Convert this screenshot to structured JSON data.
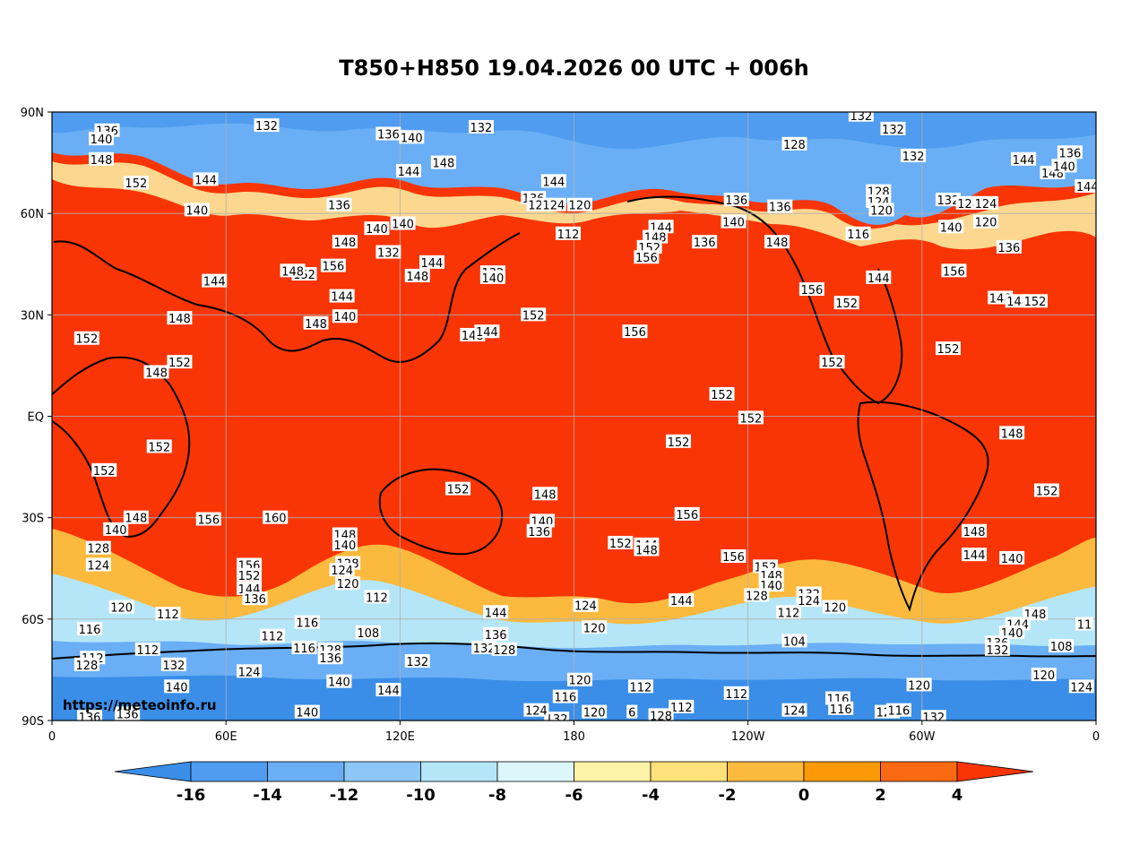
{
  "title": "T850+H850 19.04.2026 00 UTC + 006h",
  "watermark": "https://meteoinfo.ru",
  "map": {
    "projection": "equirectangular",
    "lon_range": [
      0,
      360
    ],
    "lat_range": [
      -90,
      90
    ],
    "lat_ticks": [
      {
        "lat": 90,
        "label": "90N"
      },
      {
        "lat": 60,
        "label": "60N"
      },
      {
        "lat": 30,
        "label": "30N"
      },
      {
        "lat": 0,
        "label": "EQ"
      },
      {
        "lat": -30,
        "label": "30S"
      },
      {
        "lat": -60,
        "label": "60S"
      },
      {
        "lat": -90,
        "label": "90S"
      }
    ],
    "lon_ticks": [
      {
        "lon": 0,
        "label": "0"
      },
      {
        "lon": 60,
        "label": "60E"
      },
      {
        "lon": 120,
        "label": "120E"
      },
      {
        "lon": 180,
        "label": "180"
      },
      {
        "lon": 240,
        "label": "120W"
      },
      {
        "lon": 300,
        "label": "60W"
      },
      {
        "lon": 360,
        "label": "0"
      }
    ],
    "grid": true
  },
  "colorbar": {
    "levels": [
      -16,
      -14,
      -12,
      -10,
      -8,
      -6,
      -4,
      -2,
      0,
      2,
      4
    ],
    "labels": [
      "-16",
      "-14",
      "-12",
      "-10",
      "-8",
      "-6",
      "-4",
      "-2",
      "0",
      "2",
      "4"
    ],
    "colors": [
      "#3a8ee8",
      "#4f9cf0",
      "#6aaff5",
      "#8cc7f8",
      "#b4e6f8",
      "#dcf6fc",
      "#fdf3a8",
      "#fde17a",
      "#fbba3e",
      "#fb9a06",
      "#fa6a12",
      "#f93506"
    ],
    "extend": "both"
  },
  "field_regions": [
    {
      "band": [
        [
          0,
          90
        ],
        [
          360,
          90
        ],
        [
          360,
          82
        ],
        [
          0,
          82
        ]
      ],
      "level": -14
    },
    {
      "band": [
        [
          0,
          -90
        ],
        [
          360,
          -90
        ],
        [
          360,
          -72
        ],
        [
          0,
          -72
        ]
      ],
      "level": -14
    }
  ],
  "contour_labels": [
    {
      "lon": 19,
      "lat": 84.5,
      "text": "136"
    },
    {
      "lon": 17,
      "lat": 82,
      "text": "140"
    },
    {
      "lon": 17,
      "lat": 76,
      "text": "148"
    },
    {
      "lon": 74,
      "lat": 86,
      "text": "132"
    },
    {
      "lon": 29,
      "lat": 69,
      "text": "152"
    },
    {
      "lon": 53,
      "lat": 70,
      "text": "144"
    },
    {
      "lon": 50,
      "lat": 61,
      "text": "140"
    },
    {
      "lon": 116,
      "lat": 83.5,
      "text": "136"
    },
    {
      "lon": 124,
      "lat": 82.5,
      "text": "140"
    },
    {
      "lon": 148,
      "lat": 85.5,
      "text": "132"
    },
    {
      "lon": 123,
      "lat": 72.5,
      "text": "144"
    },
    {
      "lon": 135,
      "lat": 75,
      "text": "148"
    },
    {
      "lon": 99,
      "lat": 62.5,
      "text": "136"
    },
    {
      "lon": 101,
      "lat": 51.5,
      "text": "148"
    },
    {
      "lon": 112,
      "lat": 55.5,
      "text": "140"
    },
    {
      "lon": 121,
      "lat": 57,
      "text": "140"
    },
    {
      "lon": 116,
      "lat": 48.5,
      "text": "132"
    },
    {
      "lon": 97,
      "lat": 44.5,
      "text": "156"
    },
    {
      "lon": 87,
      "lat": 42,
      "text": "152"
    },
    {
      "lon": 83,
      "lat": 43,
      "text": "148"
    },
    {
      "lon": 56,
      "lat": 40,
      "text": "144"
    },
    {
      "lon": 100,
      "lat": 35.5,
      "text": "144"
    },
    {
      "lon": 101,
      "lat": 29.5,
      "text": "140"
    },
    {
      "lon": 91,
      "lat": 27.5,
      "text": "148"
    },
    {
      "lon": 131,
      "lat": 45.5,
      "text": "144"
    },
    {
      "lon": 126,
      "lat": 41.5,
      "text": "148"
    },
    {
      "lon": 44,
      "lat": 29,
      "text": "148"
    },
    {
      "lon": 12,
      "lat": 23,
      "text": "152"
    },
    {
      "lon": 44,
      "lat": 16,
      "text": "152"
    },
    {
      "lon": 36,
      "lat": 13,
      "text": "148"
    },
    {
      "lon": 152,
      "lat": 42.5,
      "text": "132"
    },
    {
      "lon": 152,
      "lat": 41,
      "text": "140"
    },
    {
      "lon": 145,
      "lat": 24,
      "text": "148"
    },
    {
      "lon": 150,
      "lat": 25,
      "text": "144"
    },
    {
      "lon": 166,
      "lat": 64.5,
      "text": "136"
    },
    {
      "lon": 168,
      "lat": 62.5,
      "text": "128"
    },
    {
      "lon": 173,
      "lat": 62.5,
      "text": "124"
    },
    {
      "lon": 182,
      "lat": 62.5,
      "text": "120"
    },
    {
      "lon": 173,
      "lat": 69.5,
      "text": "144"
    },
    {
      "lon": 178,
      "lat": 54,
      "text": "112"
    },
    {
      "lon": 166,
      "lat": 30,
      "text": "152"
    },
    {
      "lon": 210,
      "lat": 56,
      "text": "144"
    },
    {
      "lon": 208,
      "lat": 53,
      "text": "148"
    },
    {
      "lon": 206,
      "lat": 50,
      "text": "152"
    },
    {
      "lon": 205,
      "lat": 47,
      "text": "156"
    },
    {
      "lon": 225,
      "lat": 51.5,
      "text": "136"
    },
    {
      "lon": 201,
      "lat": 25,
      "text": "156"
    },
    {
      "lon": 236,
      "lat": 64,
      "text": "136"
    },
    {
      "lon": 235,
      "lat": 57.5,
      "text": "140"
    },
    {
      "lon": 250,
      "lat": 51.5,
      "text": "148"
    },
    {
      "lon": 251,
      "lat": 62,
      "text": "136"
    },
    {
      "lon": 256,
      "lat": 80.5,
      "text": "128"
    },
    {
      "lon": 279,
      "lat": 89,
      "text": "132"
    },
    {
      "lon": 290,
      "lat": 85,
      "text": "132"
    },
    {
      "lon": 297,
      "lat": 77,
      "text": "132"
    },
    {
      "lon": 278,
      "lat": 54,
      "text": "116"
    },
    {
      "lon": 285,
      "lat": 66.5,
      "text": "128"
    },
    {
      "lon": 285,
      "lat": 63.5,
      "text": "124"
    },
    {
      "lon": 286,
      "lat": 61,
      "text": "120"
    },
    {
      "lon": 310,
      "lat": 56,
      "text": "140"
    },
    {
      "lon": 309,
      "lat": 64,
      "text": "132"
    },
    {
      "lon": 316,
      "lat": 63,
      "text": "128"
    },
    {
      "lon": 322,
      "lat": 63,
      "text": "124"
    },
    {
      "lon": 322,
      "lat": 57.5,
      "text": "120"
    },
    {
      "lon": 330,
      "lat": 50,
      "text": "136"
    },
    {
      "lon": 335,
      "lat": 76,
      "text": "144"
    },
    {
      "lon": 345,
      "lat": 72,
      "text": "148"
    },
    {
      "lon": 351,
      "lat": 78,
      "text": "136"
    },
    {
      "lon": 349,
      "lat": 74,
      "text": "140"
    },
    {
      "lon": 357,
      "lat": 68,
      "text": "144"
    },
    {
      "lon": 311,
      "lat": 43,
      "text": "156"
    },
    {
      "lon": 262,
      "lat": 37.5,
      "text": "156"
    },
    {
      "lon": 274,
      "lat": 33.5,
      "text": "152"
    },
    {
      "lon": 285,
      "lat": 41,
      "text": "144"
    },
    {
      "lon": 327,
      "lat": 35,
      "text": "148"
    },
    {
      "lon": 333,
      "lat": 34,
      "text": "148"
    },
    {
      "lon": 339,
      "lat": 34,
      "text": "152"
    },
    {
      "lon": 309,
      "lat": 20,
      "text": "152"
    },
    {
      "lon": 269,
      "lat": 16,
      "text": "152"
    },
    {
      "lon": 231,
      "lat": 6.5,
      "text": "152"
    },
    {
      "lon": 241,
      "lat": -0.5,
      "text": "152"
    },
    {
      "lon": 216,
      "lat": -7.5,
      "text": "152"
    },
    {
      "lon": 331,
      "lat": -5,
      "text": "148"
    },
    {
      "lon": 343,
      "lat": -22,
      "text": "152"
    },
    {
      "lon": 318,
      "lat": -34,
      "text": "148"
    },
    {
      "lon": 318,
      "lat": -41,
      "text": "144"
    },
    {
      "lon": 331,
      "lat": -42,
      "text": "140"
    },
    {
      "lon": 37,
      "lat": -9,
      "text": "152"
    },
    {
      "lon": 18,
      "lat": -16,
      "text": "152"
    },
    {
      "lon": 29,
      "lat": -30,
      "text": "148"
    },
    {
      "lon": 22,
      "lat": -33.5,
      "text": "140"
    },
    {
      "lon": 16,
      "lat": -39,
      "text": "128"
    },
    {
      "lon": 16,
      "lat": -44,
      "text": "124"
    },
    {
      "lon": 24,
      "lat": -56.5,
      "text": "120"
    },
    {
      "lon": 13,
      "lat": -63,
      "text": "116"
    },
    {
      "lon": 40,
      "lat": -58.5,
      "text": "112"
    },
    {
      "lon": 54,
      "lat": -30.5,
      "text": "156"
    },
    {
      "lon": 77,
      "lat": -30,
      "text": "160"
    },
    {
      "lon": 68,
      "lat": -44,
      "text": "156"
    },
    {
      "lon": 68,
      "lat": -47,
      "text": "152"
    },
    {
      "lon": 68,
      "lat": -51,
      "text": "144"
    },
    {
      "lon": 70,
      "lat": -54,
      "text": "136"
    },
    {
      "lon": 101,
      "lat": -35,
      "text": "148"
    },
    {
      "lon": 101,
      "lat": -38,
      "text": "140"
    },
    {
      "lon": 102,
      "lat": -43.5,
      "text": "128"
    },
    {
      "lon": 100,
      "lat": -45.5,
      "text": "124"
    },
    {
      "lon": 102,
      "lat": -49.5,
      "text": "120"
    },
    {
      "lon": 112,
      "lat": -53.5,
      "text": "112"
    },
    {
      "lon": 88,
      "lat": -61,
      "text": "116"
    },
    {
      "lon": 76,
      "lat": -65,
      "text": "112"
    },
    {
      "lon": 109,
      "lat": -64,
      "text": "108"
    },
    {
      "lon": 87,
      "lat": -68.5,
      "text": "116"
    },
    {
      "lon": 96,
      "lat": -69,
      "text": "128"
    },
    {
      "lon": 96,
      "lat": -71.5,
      "text": "136"
    },
    {
      "lon": 33,
      "lat": -69,
      "text": "112"
    },
    {
      "lon": 14,
      "lat": -71.5,
      "text": "112"
    },
    {
      "lon": 12,
      "lat": -73.5,
      "text": "128"
    },
    {
      "lon": 42,
      "lat": -73.5,
      "text": "132"
    },
    {
      "lon": 68,
      "lat": -75.5,
      "text": "124"
    },
    {
      "lon": 43,
      "lat": -80,
      "text": "140"
    },
    {
      "lon": 99,
      "lat": -78.5,
      "text": "140"
    },
    {
      "lon": 116,
      "lat": -81,
      "text": "144"
    },
    {
      "lon": 88,
      "lat": -87.5,
      "text": "140"
    },
    {
      "lon": 13,
      "lat": -89,
      "text": "136"
    },
    {
      "lon": 26,
      "lat": -88,
      "text": "136"
    },
    {
      "lon": 126,
      "lat": -72.5,
      "text": "132"
    },
    {
      "lon": 140,
      "lat": -21.5,
      "text": "152"
    },
    {
      "lon": 170,
      "lat": -23,
      "text": "148"
    },
    {
      "lon": 169,
      "lat": -31,
      "text": "140"
    },
    {
      "lon": 168,
      "lat": -34,
      "text": "136"
    },
    {
      "lon": 153,
      "lat": -58,
      "text": "144"
    },
    {
      "lon": 153,
      "lat": -64.5,
      "text": "136"
    },
    {
      "lon": 149,
      "lat": -68.5,
      "text": "132"
    },
    {
      "lon": 156,
      "lat": -69,
      "text": "128"
    },
    {
      "lon": 184,
      "lat": -56,
      "text": "124"
    },
    {
      "lon": 187,
      "lat": -62.5,
      "text": "120"
    },
    {
      "lon": 196,
      "lat": -37.5,
      "text": "152"
    },
    {
      "lon": 205,
      "lat": -38,
      "text": "144"
    },
    {
      "lon": 205,
      "lat": -39.5,
      "text": "148"
    },
    {
      "lon": 219,
      "lat": -29,
      "text": "156"
    },
    {
      "lon": 217,
      "lat": -54.5,
      "text": "144"
    },
    {
      "lon": 235,
      "lat": -41.5,
      "text": "156"
    },
    {
      "lon": 246,
      "lat": -44.5,
      "text": "152"
    },
    {
      "lon": 248,
      "lat": -47,
      "text": "148"
    },
    {
      "lon": 248,
      "lat": -50,
      "text": "140"
    },
    {
      "lon": 243,
      "lat": -53,
      "text": "128"
    },
    {
      "lon": 261,
      "lat": -52.5,
      "text": "132"
    },
    {
      "lon": 261,
      "lat": -54.5,
      "text": "124"
    },
    {
      "lon": 254,
      "lat": -58,
      "text": "112"
    },
    {
      "lon": 270,
      "lat": -56.5,
      "text": "120"
    },
    {
      "lon": 256,
      "lat": -66.5,
      "text": "104"
    },
    {
      "lon": 182,
      "lat": -78,
      "text": "120"
    },
    {
      "lon": 177,
      "lat": -83,
      "text": "116"
    },
    {
      "lon": 203,
      "lat": -80,
      "text": "112"
    },
    {
      "lon": 236,
      "lat": -82,
      "text": "112"
    },
    {
      "lon": 217,
      "lat": -86,
      "text": "112"
    },
    {
      "lon": 187,
      "lat": -87.5,
      "text": "120"
    },
    {
      "lon": 200,
      "lat": -87.5,
      "text": "6"
    },
    {
      "lon": 174,
      "lat": -89.5,
      "text": "132"
    },
    {
      "lon": 167,
      "lat": -87,
      "text": "124"
    },
    {
      "lon": 210,
      "lat": -88.5,
      "text": "128"
    },
    {
      "lon": 256,
      "lat": -87,
      "text": "124"
    },
    {
      "lon": 271,
      "lat": -83.5,
      "text": "116"
    },
    {
      "lon": 272,
      "lat": -86.5,
      "text": "116"
    },
    {
      "lon": 288,
      "lat": -87.5,
      "text": "120"
    },
    {
      "lon": 292,
      "lat": -87,
      "text": "116"
    },
    {
      "lon": 304,
      "lat": -89,
      "text": "132"
    },
    {
      "lon": 299,
      "lat": -79.5,
      "text": "120"
    },
    {
      "lon": 339,
      "lat": -58.5,
      "text": "148"
    },
    {
      "lon": 333,
      "lat": -61.5,
      "text": "144"
    },
    {
      "lon": 331,
      "lat": -64,
      "text": "140"
    },
    {
      "lon": 326,
      "lat": -67,
      "text": "136"
    },
    {
      "lon": 326,
      "lat": -69,
      "text": "132"
    },
    {
      "lon": 348,
      "lat": -68,
      "text": "108"
    },
    {
      "lon": 356,
      "lat": -61.5,
      "text": "11"
    },
    {
      "lon": 342,
      "lat": -76.5,
      "text": "120"
    },
    {
      "lon": 355,
      "lat": -80,
      "text": "124"
    }
  ]
}
